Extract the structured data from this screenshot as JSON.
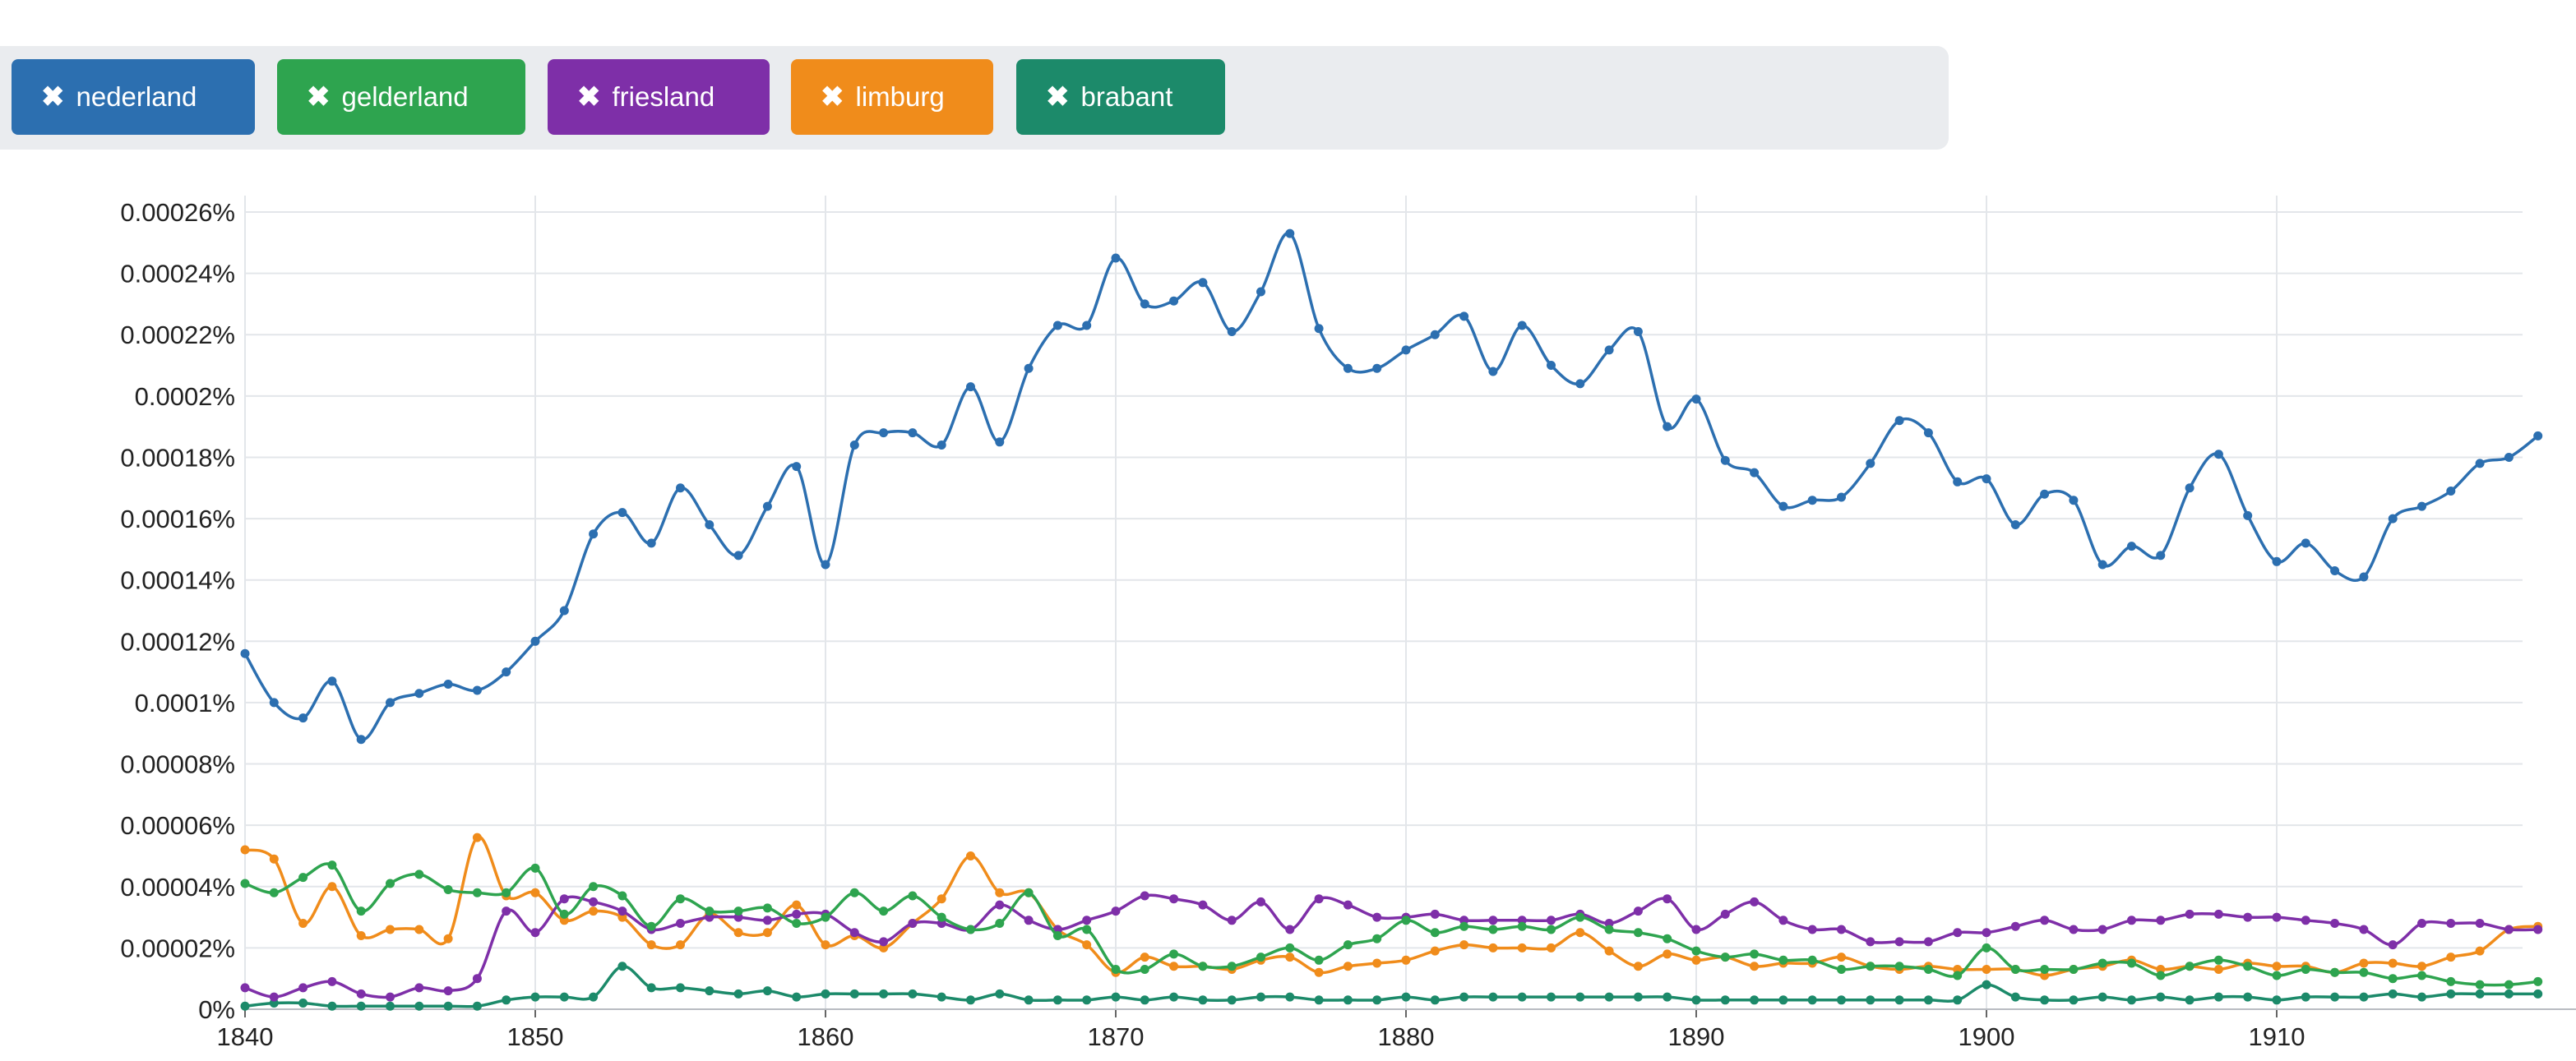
{
  "filters": [
    {
      "label": "nederland",
      "color": "#2c6fb0",
      "remove_icon": "close-icon"
    },
    {
      "label": "gelderland",
      "color": "#2ea44f",
      "remove_icon": "close-icon"
    },
    {
      "label": "friesland",
      "color": "#7e2fa8",
      "remove_icon": "close-icon"
    },
    {
      "label": "limburg",
      "color": "#f08c1b",
      "remove_icon": "close-icon"
    },
    {
      "label": "brabant",
      "color": "#1c8a6a",
      "remove_icon": "close-icon"
    }
  ],
  "chart_data": {
    "type": "line",
    "grid": true,
    "xlim": [
      1840,
      1919
    ],
    "ylim": [
      0,
      0.00026
    ],
    "x_ticks": [
      "1840",
      "1850",
      "1860",
      "1870",
      "1880",
      "1890",
      "1900",
      "1910"
    ],
    "y_ticks": [
      "0.00026%",
      "0.00024%",
      "0.00022%",
      "0.0002%",
      "0.00018%",
      "0.00016%",
      "0.00014%",
      "0.00012%",
      "0.0001%",
      "0.00008%",
      "0.00006%",
      "0.00004%",
      "0.00002%",
      "0%"
    ],
    "x": [
      1840,
      1841,
      1842,
      1843,
      1844,
      1845,
      1846,
      1847,
      1848,
      1849,
      1850,
      1851,
      1852,
      1853,
      1854,
      1855,
      1856,
      1857,
      1858,
      1859,
      1860,
      1861,
      1862,
      1863,
      1864,
      1865,
      1866,
      1867,
      1868,
      1869,
      1870,
      1871,
      1872,
      1873,
      1874,
      1875,
      1876,
      1877,
      1878,
      1879,
      1880,
      1881,
      1882,
      1883,
      1884,
      1885,
      1886,
      1887,
      1888,
      1889,
      1890,
      1891,
      1892,
      1893,
      1894,
      1895,
      1896,
      1897,
      1898,
      1899,
      1900,
      1901,
      1902,
      1903,
      1904,
      1905,
      1906,
      1907,
      1908,
      1909,
      1910,
      1911,
      1912,
      1913,
      1914,
      1915,
      1916,
      1917,
      1918,
      1919
    ],
    "series": [
      {
        "name": "nederland",
        "color": "#2c6fb0",
        "values": [
          0.000116,
          0.0001,
          9.5e-05,
          0.000107,
          8.8e-05,
          0.0001,
          0.000103,
          0.000106,
          0.000104,
          0.00011,
          0.00012,
          0.00013,
          0.000155,
          0.000162,
          0.000152,
          0.00017,
          0.000158,
          0.000148,
          0.000164,
          0.000177,
          0.000145,
          0.000184,
          0.000188,
          0.000188,
          0.000184,
          0.000203,
          0.000185,
          0.000209,
          0.000223,
          0.000223,
          0.000245,
          0.00023,
          0.000231,
          0.000237,
          0.000221,
          0.000234,
          0.000253,
          0.000222,
          0.000209,
          0.000209,
          0.000215,
          0.00022,
          0.000226,
          0.000208,
          0.000223,
          0.00021,
          0.000204,
          0.000215,
          0.000221,
          0.00019,
          0.000199,
          0.000179,
          0.000175,
          0.000164,
          0.000166,
          0.000167,
          0.000178,
          0.000192,
          0.000188,
          0.000172,
          0.000173,
          0.000158,
          0.000168,
          0.000166,
          0.000145,
          0.000151,
          0.000148,
          0.00017,
          0.000181,
          0.000161,
          0.000146,
          0.000152,
          0.000143,
          0.000141,
          0.00016,
          0.000164,
          0.000169,
          0.000178,
          0.00018,
          0.000187
        ]
      },
      {
        "name": "gelderland",
        "color": "#2ea44f",
        "values": [
          4.1e-05,
          3.8e-05,
          4.3e-05,
          4.7e-05,
          3.2e-05,
          4.1e-05,
          4.4e-05,
          3.9e-05,
          3.8e-05,
          3.8e-05,
          4.6e-05,
          3.1e-05,
          4e-05,
          3.7e-05,
          2.7e-05,
          3.6e-05,
          3.2e-05,
          3.2e-05,
          3.3e-05,
          2.8e-05,
          3e-05,
          3.8e-05,
          3.2e-05,
          3.7e-05,
          3e-05,
          2.6e-05,
          2.8e-05,
          3.8e-05,
          2.4e-05,
          2.6e-05,
          1.3e-05,
          1.3e-05,
          1.8e-05,
          1.4e-05,
          1.4e-05,
          1.7e-05,
          2e-05,
          1.6e-05,
          2.1e-05,
          2.3e-05,
          2.9e-05,
          2.5e-05,
          2.7e-05,
          2.6e-05,
          2.7e-05,
          2.6e-05,
          3e-05,
          2.6e-05,
          2.5e-05,
          2.3e-05,
          1.9e-05,
          1.7e-05,
          1.8e-05,
          1.6e-05,
          1.6e-05,
          1.3e-05,
          1.4e-05,
          1.4e-05,
          1.3e-05,
          1.1e-05,
          2e-05,
          1.3e-05,
          1.3e-05,
          1.3e-05,
          1.5e-05,
          1.5e-05,
          1.1e-05,
          1.4e-05,
          1.6e-05,
          1.4e-05,
          1.1e-05,
          1.3e-05,
          1.2e-05,
          1.2e-05,
          1e-05,
          1.1e-05,
          9e-06,
          8e-06,
          8e-06,
          9e-06
        ]
      },
      {
        "name": "friesland",
        "color": "#7e2fa8",
        "values": [
          7e-06,
          4e-06,
          7e-06,
          9e-06,
          5e-06,
          4e-06,
          7e-06,
          6e-06,
          1e-05,
          3.2e-05,
          2.5e-05,
          3.6e-05,
          3.5e-05,
          3.2e-05,
          2.6e-05,
          2.8e-05,
          3e-05,
          3e-05,
          2.9e-05,
          3.1e-05,
          3.1e-05,
          2.5e-05,
          2.2e-05,
          2.8e-05,
          2.8e-05,
          2.6e-05,
          3.4e-05,
          2.9e-05,
          2.6e-05,
          2.9e-05,
          3.2e-05,
          3.7e-05,
          3.6e-05,
          3.4e-05,
          2.9e-05,
          3.5e-05,
          2.6e-05,
          3.6e-05,
          3.4e-05,
          3e-05,
          3e-05,
          3.1e-05,
          2.9e-05,
          2.9e-05,
          2.9e-05,
          2.9e-05,
          3.1e-05,
          2.8e-05,
          3.2e-05,
          3.6e-05,
          2.6e-05,
          3.1e-05,
          3.5e-05,
          2.9e-05,
          2.6e-05,
          2.6e-05,
          2.2e-05,
          2.2e-05,
          2.2e-05,
          2.5e-05,
          2.5e-05,
          2.7e-05,
          2.9e-05,
          2.6e-05,
          2.6e-05,
          2.9e-05,
          2.9e-05,
          3.1e-05,
          3.1e-05,
          3e-05,
          3e-05,
          2.9e-05,
          2.8e-05,
          2.6e-05,
          2.1e-05,
          2.8e-05,
          2.8e-05,
          2.8e-05,
          2.6e-05,
          2.6e-05
        ]
      },
      {
        "name": "limburg",
        "color": "#f08c1b",
        "values": [
          5.2e-05,
          4.9e-05,
          2.8e-05,
          4e-05,
          2.4e-05,
          2.6e-05,
          2.6e-05,
          2.3e-05,
          5.6e-05,
          3.7e-05,
          3.8e-05,
          2.9e-05,
          3.2e-05,
          3e-05,
          2.1e-05,
          2.1e-05,
          3.1e-05,
          2.5e-05,
          2.5e-05,
          3.4e-05,
          2.1e-05,
          2.4e-05,
          2e-05,
          2.8e-05,
          3.6e-05,
          5e-05,
          3.8e-05,
          3.8e-05,
          2.6e-05,
          2.1e-05,
          1.2e-05,
          1.7e-05,
          1.4e-05,
          1.4e-05,
          1.3e-05,
          1.6e-05,
          1.7e-05,
          1.2e-05,
          1.4e-05,
          1.5e-05,
          1.6e-05,
          1.9e-05,
          2.1e-05,
          2e-05,
          2e-05,
          2e-05,
          2.5e-05,
          1.9e-05,
          1.4e-05,
          1.8e-05,
          1.6e-05,
          1.7e-05,
          1.4e-05,
          1.5e-05,
          1.5e-05,
          1.7e-05,
          1.4e-05,
          1.3e-05,
          1.4e-05,
          1.3e-05,
          1.3e-05,
          1.3e-05,
          1.1e-05,
          1.3e-05,
          1.4e-05,
          1.6e-05,
          1.3e-05,
          1.4e-05,
          1.3e-05,
          1.5e-05,
          1.4e-05,
          1.4e-05,
          1.2e-05,
          1.5e-05,
          1.5e-05,
          1.4e-05,
          1.7e-05,
          1.9e-05,
          2.6e-05,
          2.7e-05
        ]
      },
      {
        "name": "brabant",
        "color": "#1c8a6a",
        "values": [
          1e-06,
          2e-06,
          2e-06,
          1e-06,
          1e-06,
          1e-06,
          1e-06,
          1e-06,
          1e-06,
          3e-06,
          4e-06,
          4e-06,
          4e-06,
          1.4e-05,
          7e-06,
          7e-06,
          6e-06,
          5e-06,
          6e-06,
          4e-06,
          5e-06,
          5e-06,
          5e-06,
          5e-06,
          4e-06,
          3e-06,
          5e-06,
          3e-06,
          3e-06,
          3e-06,
          4e-06,
          3e-06,
          4e-06,
          3e-06,
          3e-06,
          4e-06,
          4e-06,
          3e-06,
          3e-06,
          3e-06,
          4e-06,
          3e-06,
          4e-06,
          4e-06,
          4e-06,
          4e-06,
          4e-06,
          4e-06,
          4e-06,
          4e-06,
          3e-06,
          3e-06,
          3e-06,
          3e-06,
          3e-06,
          3e-06,
          3e-06,
          3e-06,
          3e-06,
          3e-06,
          8e-06,
          4e-06,
          3e-06,
          3e-06,
          4e-06,
          3e-06,
          4e-06,
          3e-06,
          4e-06,
          4e-06,
          3e-06,
          4e-06,
          4e-06,
          4e-06,
          5e-06,
          4e-06,
          5e-06,
          5e-06,
          5e-06,
          5e-06
        ]
      }
    ]
  }
}
